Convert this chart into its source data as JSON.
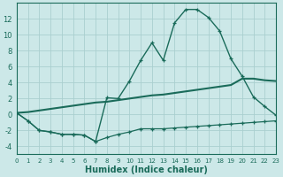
{
  "title": "",
  "xlabel": "Humidex (Indice chaleur)",
  "ylabel": "",
  "background_color": "#cce8e8",
  "line_color": "#1a6b5a",
  "grid_color": "#aacfcf",
  "x_values": [
    0,
    1,
    2,
    3,
    4,
    5,
    6,
    7,
    8,
    9,
    10,
    11,
    12,
    13,
    14,
    15,
    16,
    17,
    18,
    19,
    20,
    21,
    22,
    23
  ],
  "line1_y": [
    0.2,
    -0.8,
    -2.0,
    -2.2,
    -2.5,
    -2.5,
    -2.6,
    -3.4,
    -2.9,
    -2.5,
    -2.2,
    -1.8,
    -1.8,
    -1.8,
    -1.7,
    -1.6,
    -1.5,
    -1.4,
    -1.3,
    -1.2,
    -1.1,
    -1.0,
    -0.9,
    -0.8
  ],
  "line2_y": [
    0.2,
    -0.8,
    -2.0,
    -2.2,
    -2.5,
    -2.5,
    -2.6,
    -3.4,
    2.1,
    2.0,
    4.2,
    6.8,
    9.0,
    6.8,
    11.5,
    13.2,
    13.2,
    12.2,
    10.5,
    7.0,
    4.8,
    2.2,
    1.0,
    -0.1
  ],
  "line3_y": [
    0.2,
    0.3,
    0.5,
    0.7,
    0.9,
    1.1,
    1.3,
    1.5,
    1.6,
    1.8,
    2.0,
    2.2,
    2.4,
    2.5,
    2.7,
    2.9,
    3.1,
    3.3,
    3.5,
    3.7,
    4.5,
    4.5,
    4.3,
    4.2
  ],
  "xlim": [
    0,
    23
  ],
  "ylim": [
    -5,
    14
  ],
  "yticks": [
    -4,
    -2,
    0,
    2,
    4,
    6,
    8,
    10,
    12
  ],
  "xticks": [
    0,
    1,
    2,
    3,
    4,
    5,
    6,
    7,
    8,
    9,
    10,
    11,
    12,
    13,
    14,
    15,
    16,
    17,
    18,
    19,
    20,
    21,
    22,
    23
  ]
}
